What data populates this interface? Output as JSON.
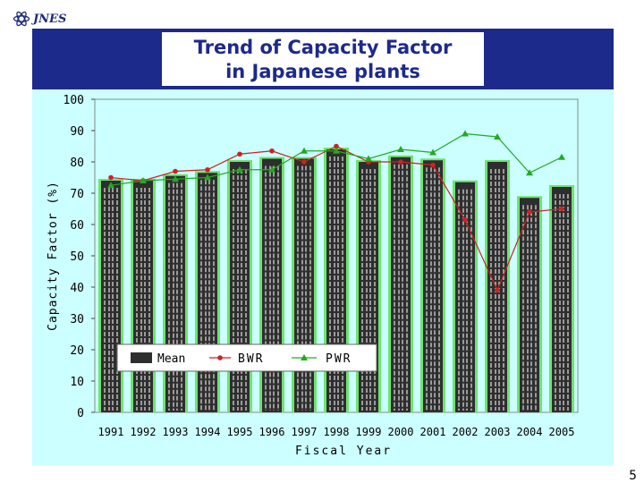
{
  "slide": {
    "logo_text": "JNES",
    "title": "Trend of Capacity Factor\nin Japanese plants",
    "page_number": "5"
  },
  "chart_data": {
    "type": "bar",
    "title": "Trend of Capacity Factor in Japanese plants",
    "xlabel": "Fiscal Year",
    "ylabel": "Capacity Factor (%)",
    "ylim": [
      0,
      100
    ],
    "yticks": [
      0,
      10,
      20,
      30,
      40,
      50,
      60,
      70,
      80,
      90,
      100
    ],
    "grid": false,
    "legend_position": "bottom-left",
    "categories": [
      "1991",
      "1992",
      "1993",
      "1994",
      "1995",
      "1996",
      "1997",
      "1998",
      "1999",
      "2000",
      "2001",
      "2002",
      "2003",
      "2004",
      "2005"
    ],
    "series": [
      {
        "name": "Mean",
        "kind": "bar",
        "color": "#2e2e2e",
        "values": [
          74,
          74,
          75.5,
          76.5,
          80,
          81,
          81,
          84,
          80,
          81.5,
          80.5,
          73.5,
          80,
          68.5,
          72
        ]
      },
      {
        "name": "BWR",
        "kind": "line",
        "color": "#cc2222",
        "marker": "circle",
        "values": [
          75,
          74,
          77,
          77.5,
          82.5,
          83.5,
          80,
          85,
          80,
          80,
          79,
          61.5,
          39,
          64,
          65
        ]
      },
      {
        "name": "PWR",
        "kind": "line",
        "color": "#22aa22",
        "marker": "triangle",
        "values": [
          72.5,
          74,
          74.5,
          75,
          77.5,
          77.5,
          83.5,
          83.5,
          81,
          84,
          83,
          89,
          88,
          76.5,
          81.5
        ]
      }
    ]
  }
}
